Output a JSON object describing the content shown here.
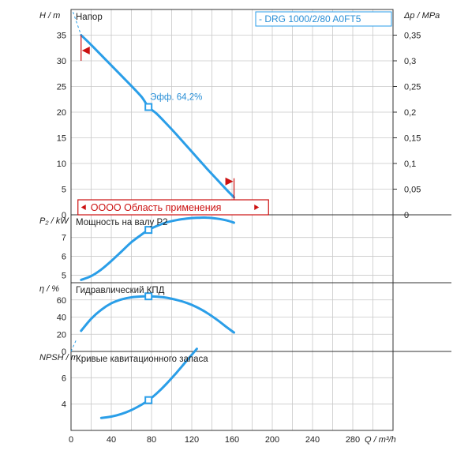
{
  "chart_data": {
    "type": "line",
    "model_label": "- DRG 1000/2/80 A0FT5",
    "x_axis": {
      "label": "Q / m³/h",
      "range": [
        0,
        320
      ],
      "ticks": [
        "0",
        "40",
        "80",
        "120",
        "160",
        "200",
        "240",
        "280"
      ]
    },
    "panels": [
      {
        "id": "head",
        "title": "Напор",
        "ylabel": "H / m",
        "y_range": [
          0,
          40
        ],
        "y_ticks": [
          0,
          5,
          10,
          15,
          20,
          25,
          30,
          35
        ],
        "y2_label": "Δp / MPa",
        "y2_ticks": [
          "0",
          "0,05",
          "0,1",
          "0,15",
          "0,2",
          "0,25",
          "0,3",
          "0,35"
        ],
        "series": {
          "x": [
            10,
            20,
            30,
            40,
            50,
            60,
            70,
            77,
            85,
            95,
            105,
            115,
            125,
            135,
            145,
            155,
            162
          ],
          "y": [
            35,
            33.1,
            31.1,
            29.1,
            27.1,
            25.1,
            23,
            21,
            19.7,
            17.7,
            15.6,
            13.4,
            11.2,
            9,
            6.9,
            4.8,
            3.4
          ]
        },
        "operating_point": {
          "x": 77,
          "y": 21,
          "label": "Эфф.  64,2%"
        },
        "region_label": "OOOO Область применения",
        "region_range": [
          10,
          190
        ],
        "limit_markers": [
          {
            "x": 10,
            "y": 32
          },
          {
            "x": 162,
            "y": 6.5
          }
        ]
      },
      {
        "id": "power",
        "title": "Мощность на валу P2",
        "ylabel": "P₂ / kW",
        "y_range": [
          4.6,
          8.2
        ],
        "y_ticks": [
          5,
          6,
          7
        ],
        "series": {
          "x": [
            10,
            20,
            30,
            40,
            50,
            60,
            70,
            77,
            85,
            95,
            105,
            115,
            125,
            135,
            145,
            155,
            162
          ],
          "y": [
            4.75,
            4.95,
            5.3,
            5.75,
            6.25,
            6.75,
            7.15,
            7.4,
            7.6,
            7.8,
            7.92,
            8.0,
            8.04,
            8.05,
            8.0,
            7.9,
            7.78
          ]
        },
        "operating_point": {
          "x": 77,
          "y": 7.4
        }
      },
      {
        "id": "efficiency",
        "title": "Гидравлический КПД",
        "ylabel": "η / %",
        "y_range": [
          0,
          80
        ],
        "y_ticks": [
          0,
          20,
          40,
          60
        ],
        "series": {
          "x": [
            10,
            20,
            30,
            40,
            50,
            60,
            70,
            77,
            85,
            95,
            105,
            115,
            125,
            135,
            145,
            155,
            162
          ],
          "y": [
            24,
            38,
            48.5,
            56,
            60.5,
            63,
            64,
            64.2,
            63.8,
            62.5,
            60,
            56.5,
            51.5,
            45,
            37,
            28,
            22
          ]
        },
        "operating_point": {
          "x": 77,
          "y": 64.2
        },
        "intercept": {
          "x": [
            0,
            5
          ],
          "y": [
            0,
            13
          ]
        }
      },
      {
        "id": "npsh",
        "title": "Кривые кавитационного запаса",
        "ylabel": "NPSH / m",
        "y_range": [
          2,
          8
        ],
        "y_ticks": [
          4,
          6
        ],
        "series": {
          "x": [
            30,
            40,
            50,
            60,
            70,
            77,
            85,
            95,
            105,
            115,
            125
          ],
          "y": [
            2.95,
            3.05,
            3.25,
            3.55,
            3.95,
            4.3,
            4.8,
            5.55,
            6.4,
            7.3,
            8.2
          ]
        },
        "operating_point": {
          "x": 77,
          "y": 4.3
        }
      }
    ],
    "colors": {
      "curve": "#2a9ee8",
      "marker": "#2a9ee8",
      "region": "#cc1111",
      "grid": "#c8c8c8",
      "axis": "#333333"
    }
  }
}
